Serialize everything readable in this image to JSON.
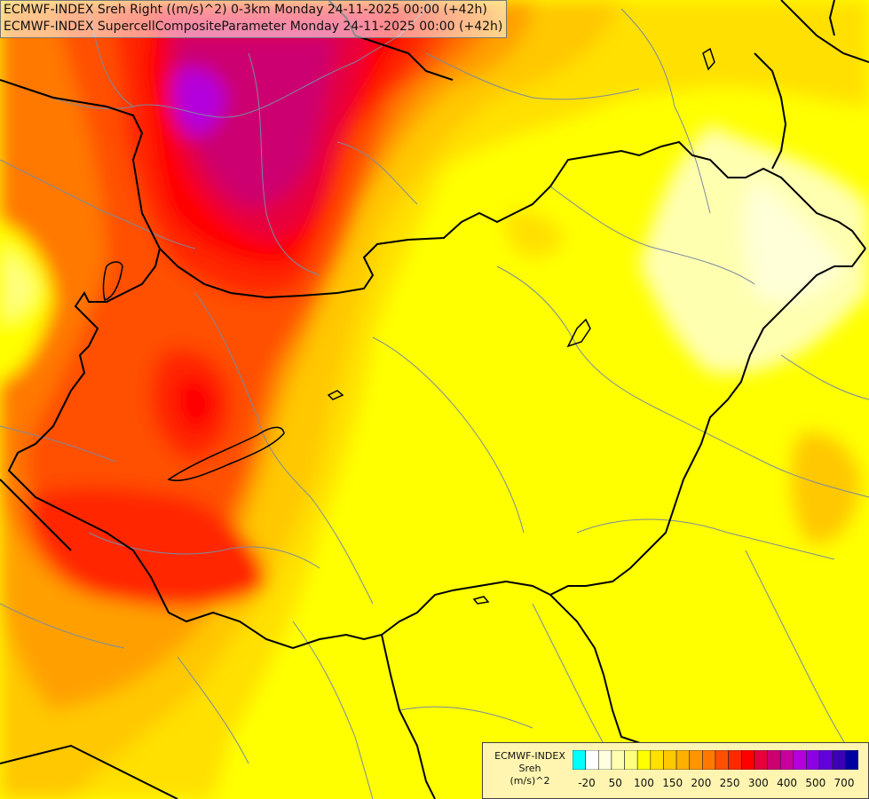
{
  "header": {
    "line1": "ECMWF-INDEX Sreh Right ((m/s)^2) 0-3km Monday 24-11-2025 00:00 (+42h)",
    "line2": "ECMWF-INDEX SupercellCompositeParameter Monday 24-11-2025 00:00 (+42h)"
  },
  "legend": {
    "title_lines": [
      "ECMWF-INDEX",
      "Sreh",
      "(m/s)^2"
    ],
    "colors": [
      "#00ffff",
      "#ffffff",
      "#ffffe0",
      "#ffffb0",
      "#ffff80",
      "#ffff00",
      "#ffe000",
      "#ffc800",
      "#ffb000",
      "#ff9600",
      "#ff7800",
      "#ff5000",
      "#ff2800",
      "#ff0000",
      "#e6003c",
      "#cc0070",
      "#c8009c",
      "#b400dc",
      "#8c00e6",
      "#6400dc",
      "#3c00b4",
      "#0000a0"
    ],
    "tick_labels": [
      "-20",
      "50",
      "100",
      "150",
      "200",
      "250",
      "300",
      "400",
      "500",
      "700"
    ]
  }
}
